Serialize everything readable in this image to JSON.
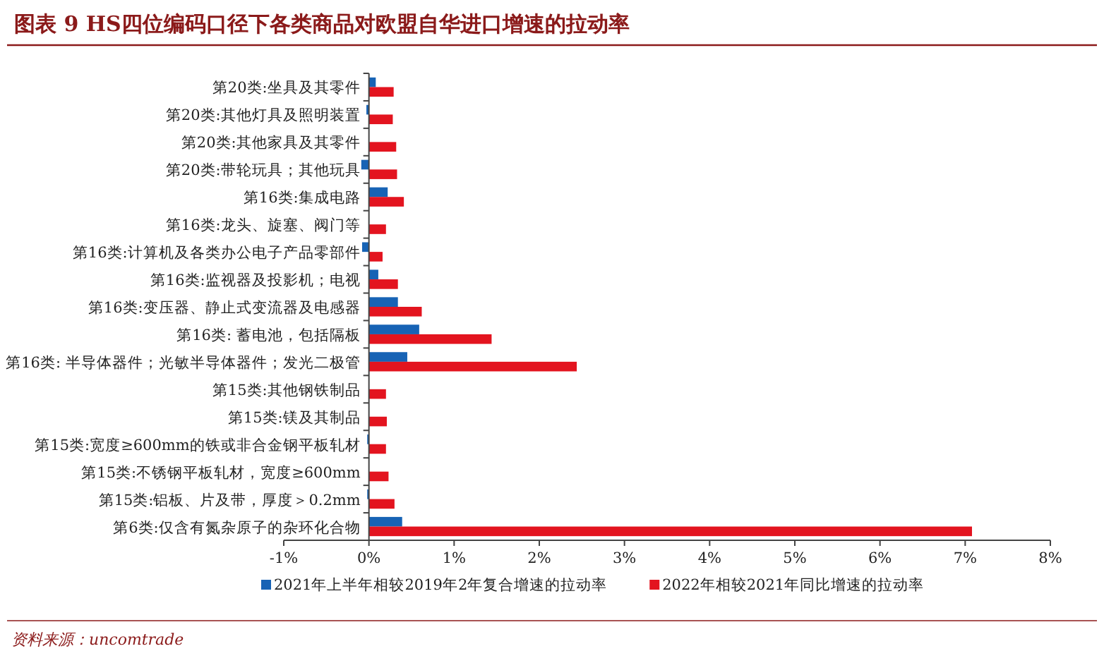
{
  "chart_data": {
    "type": "bar",
    "orientation": "horizontal",
    "title": "图表 9   HS四位编码口径下各类商品对欧盟自华进口增速的拉动率",
    "categories": [
      "第20类:坐具及其零件",
      "第20类:其他灯具及照明装置",
      "第20类:其他家具及其零件",
      "第20类:带轮玩具；其他玩具",
      "第16类:集成电路",
      "第16类:龙头、旋塞、阀门等",
      "第16类:计算机及各类办公电子产品零部件",
      "第16类:监视器及投影机；电视",
      "第16类:变压器、静止式变流器及电感器",
      "第16类: 蓄电池，包括隔板",
      "第16类: 半导体器件；光敏半导体器件；发光二极管",
      "第15类:其他钢铁制品",
      "第15类:镁及其制品",
      "第15类:宽度≥600mm的铁或非合金钢平板轧材",
      "第15类:不锈钢平板轧材，宽度≥600mm",
      "第15类:铝板、片及带，厚度＞0.2mm",
      "第6类:仅含有氮杂原子的杂环化合物"
    ],
    "series": [
      {
        "name": "2021年上半年相较2019年2年复合增速的拉动率",
        "color": "#1763b5",
        "values": [
          0.08,
          -0.03,
          null,
          -0.09,
          0.22,
          null,
          -0.08,
          0.11,
          0.34,
          0.59,
          0.45,
          null,
          null,
          -0.02,
          null,
          -0.02,
          0.39
        ]
      },
      {
        "name": "2022年相较2021年同比增速的拉动率",
        "color": "#e3141f",
        "values": [
          0.29,
          0.28,
          0.32,
          0.33,
          0.41,
          0.2,
          0.16,
          0.34,
          0.62,
          1.44,
          2.44,
          0.2,
          0.21,
          0.2,
          0.23,
          0.3,
          7.08
        ]
      }
    ],
    "xlim": [
      -1,
      8
    ],
    "xticks": [
      {
        "value": -1,
        "label": "-1%"
      },
      {
        "value": 0,
        "label": "0%"
      },
      {
        "value": 1,
        "label": "1%"
      },
      {
        "value": 2,
        "label": "2%"
      },
      {
        "value": 3,
        "label": "3%"
      },
      {
        "value": 4,
        "label": "4%"
      },
      {
        "value": 5,
        "label": "5%"
      },
      {
        "value": 6,
        "label": "6%"
      },
      {
        "value": 7,
        "label": "7%"
      },
      {
        "value": 8,
        "label": "8%"
      }
    ],
    "legend": "bottom",
    "annotations": [
      "资料来源：uncomtrade"
    ]
  }
}
